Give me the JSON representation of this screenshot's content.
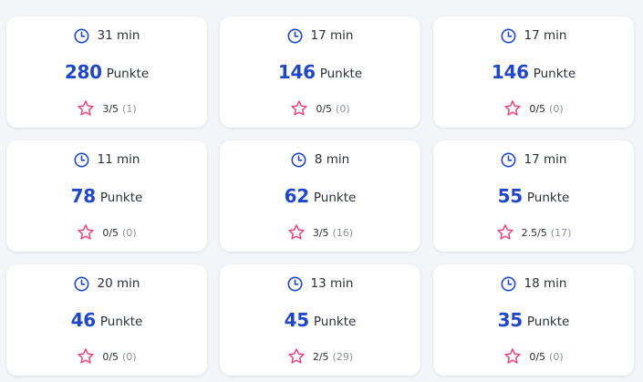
{
  "colors": {
    "accent": "#1f47c6",
    "star": "#e8457a",
    "text": "#2b2f3a",
    "muted": "#8c909a",
    "background": "#f4f5f8",
    "card": "#ffffff"
  },
  "icons": {
    "time": "clock-icon",
    "rating": "star-outline-icon"
  },
  "points_label": "Punkte",
  "cards": [
    {
      "time": "31 min",
      "points": "280",
      "rating": "3/5",
      "count": "(1)"
    },
    {
      "time": "17 min",
      "points": "146",
      "rating": "0/5",
      "count": "(0)"
    },
    {
      "time": "17 min",
      "points": "146",
      "rating": "0/5",
      "count": "(0)"
    },
    {
      "time": "11 min",
      "points": "78",
      "rating": "0/5",
      "count": "(0)"
    },
    {
      "time": "8 min",
      "points": "62",
      "rating": "3/5",
      "count": "(16)"
    },
    {
      "time": "17 min",
      "points": "55",
      "rating": "2.5/5",
      "count": "(17)"
    },
    {
      "time": "20 min",
      "points": "46",
      "rating": "0/5",
      "count": "(0)"
    },
    {
      "time": "13 min",
      "points": "45",
      "rating": "2/5",
      "count": "(29)"
    },
    {
      "time": "18 min",
      "points": "35",
      "rating": "0/5",
      "count": "(0)"
    }
  ]
}
